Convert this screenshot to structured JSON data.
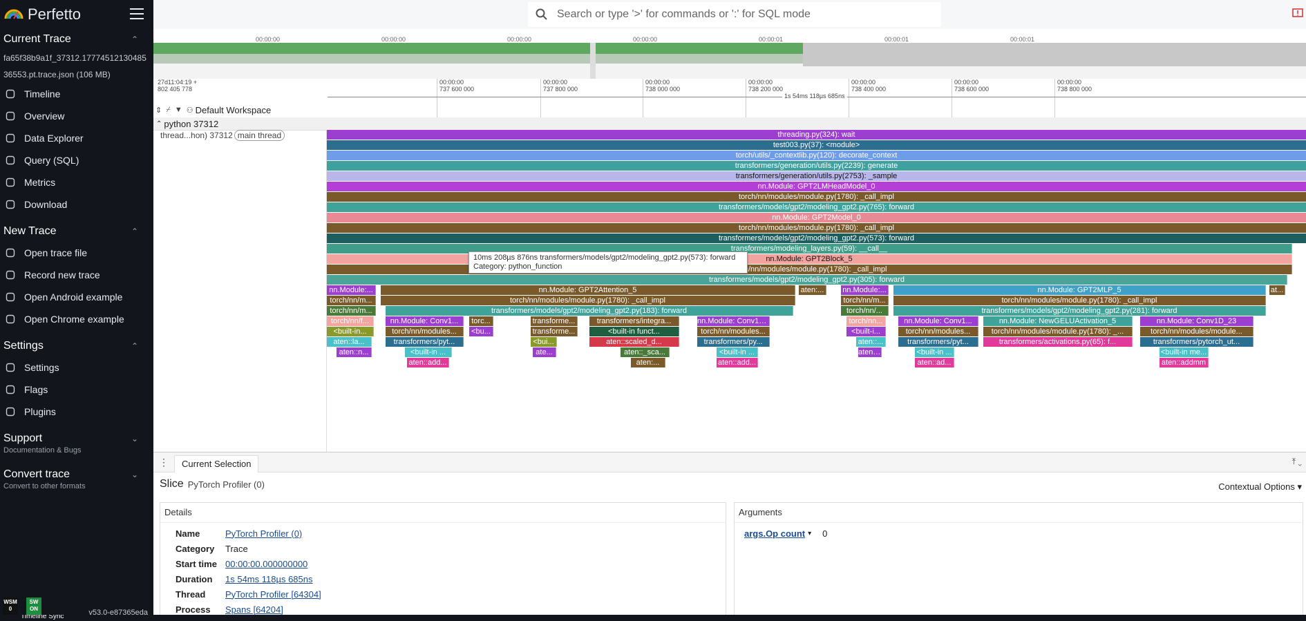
{
  "app": {
    "name": "Perfetto",
    "version": "v53.0-e87365eda",
    "badges": [
      {
        "top": "WSM",
        "bottom": "0",
        "color": "#111111"
      },
      {
        "top": "SW",
        "bottom": "ON",
        "color": "#1e8e3e"
      }
    ]
  },
  "sidebar": {
    "sections": [
      {
        "title": "Current Trace",
        "trace_name": "fa65f38b9a1f_37312.1777451213048536553.pt.trace.json (106 MB)",
        "items": [
          {
            "label": "Timeline",
            "icon": "timeline-icon"
          },
          {
            "label": "Overview",
            "icon": "info-icon"
          },
          {
            "label": "Data Explorer",
            "icon": "explore-icon"
          },
          {
            "label": "Query (SQL)",
            "icon": "database-icon"
          },
          {
            "label": "Metrics",
            "icon": "speed-icon"
          },
          {
            "label": "Download",
            "icon": "download-icon"
          }
        ]
      },
      {
        "title": "New Trace",
        "items": [
          {
            "label": "Open trace file",
            "icon": "folder-icon"
          },
          {
            "label": "Record new trace",
            "icon": "record-icon"
          },
          {
            "label": "Open Android example",
            "icon": "android-icon"
          },
          {
            "label": "Open Chrome example",
            "icon": "globe-icon"
          }
        ]
      },
      {
        "title": "Settings",
        "items": [
          {
            "label": "Settings",
            "icon": "gear-icon"
          },
          {
            "label": "Flags",
            "icon": "flag-icon"
          },
          {
            "label": "Plugins",
            "icon": "plugin-icon"
          }
        ]
      },
      {
        "title": "Support",
        "subtitle": "Documentation & Bugs"
      },
      {
        "title": "Convert trace",
        "subtitle": "Convert to other formats"
      }
    ]
  },
  "search": {
    "placeholder": "Search or type '>' for commands or ':' for SQL mode"
  },
  "overview": {
    "ticks": [
      "00:00:00",
      "00:00:00",
      "00:00:00",
      "00:00:00",
      "00:00:01",
      "00:00:01",
      "00:00:01"
    ]
  },
  "axis": {
    "origin": [
      "27d11:04:19 +",
      "802 405 778"
    ],
    "ticks": [
      {
        "line1": "00:00:00",
        "line2": "737 600 000"
      },
      {
        "line1": "00:00:00",
        "line2": "737 800 000"
      },
      {
        "line1": "00:00:00",
        "line2": "738 000 000"
      },
      {
        "line1": "00:00:00",
        "line2": "738 200 000"
      },
      {
        "line1": "00:00:00",
        "line2": "738 400 000"
      },
      {
        "line1": "00:00:00",
        "line2": "738 600 000"
      },
      {
        "line1": "00:00:00",
        "line2": "738 800 000"
      }
    ],
    "span_label": "1s 54ms 118µs 685ns",
    "workspace": "Default Workspace"
  },
  "tracks": {
    "process": "python 37312",
    "thread": "thread...hon) 37312",
    "thread_tag": "main thread",
    "slices": [
      {
        "d": 0,
        "s": 0,
        "e": 1,
        "c": "#9c3fd1",
        "t": "threading.py(324): wait"
      },
      {
        "d": 1,
        "s": 0,
        "e": 1,
        "c": "#2c6e8f",
        "t": "test003.py(37): <module>"
      },
      {
        "d": 2,
        "s": 0,
        "e": 1,
        "c": "#6f9ce8",
        "t": "torch/utils/_contextlib.py(120): decorate_context"
      },
      {
        "d": 3,
        "s": 0,
        "e": 1,
        "c": "#3fa0a0",
        "t": "transformers/generation/utils.py(2239): generate"
      },
      {
        "d": 4,
        "s": 0,
        "e": 1,
        "c": "#b9b6ea",
        "t": "transformers/generation/utils.py(2753): _sample",
        "dark": true
      },
      {
        "d": 5,
        "s": 0,
        "e": 1,
        "c": "#b53ed6",
        "t": "nn.Module: GPT2LMHeadModel_0"
      },
      {
        "d": 6,
        "s": 0,
        "e": 1,
        "c": "#7a5a2a",
        "t": "torch/nn/modules/module.py(1780): _call_impl"
      },
      {
        "d": 7,
        "s": 0,
        "e": 1,
        "c": "#3fa39a",
        "t": "transformers/models/gpt2/modeling_gpt2.py(765): forward"
      },
      {
        "d": 8,
        "s": 0,
        "e": 1,
        "c": "#e88a95",
        "t": "nn.Module: GPT2Model_0"
      },
      {
        "d": 9,
        "s": 0,
        "e": 1,
        "c": "#7a5a2a",
        "t": "torch/nn/modules/module.py(1780): _call_impl"
      },
      {
        "d": 10,
        "s": 0,
        "e": 1,
        "c": "#1f5e5e",
        "t": "transformers/models/gpt2/modeling_gpt2.py(573): forward"
      },
      {
        "d": 11,
        "s": 0,
        "e": 0.985,
        "c": "#3f9e8a",
        "t": "transformers/modeling_layers.py(59): __call__"
      },
      {
        "d": 12,
        "s": 0,
        "e": 0.985,
        "c": "#f2a5a0",
        "t": "nn.Module: GPT2Block_5",
        "dark": true
      },
      {
        "d": 13,
        "s": 0,
        "e": 0.985,
        "c": "#7a5a2a",
        "t": "torch/nn/modules/module.py(1780): _call_impl"
      },
      {
        "d": 14,
        "s": 0,
        "e": 0.98,
        "c": "#4aa598",
        "t": "transformers/models/gpt2/modeling_gpt2.py(305): forward"
      },
      {
        "d": 15,
        "s": 0,
        "e": 0.05,
        "c": "#9c3fd1",
        "t": "nn.Module:..."
      },
      {
        "d": 15,
        "s": 0.055,
        "e": 0.478,
        "c": "#7a5a2a",
        "t": "nn.Module: GPT2Attention_5"
      },
      {
        "d": 15,
        "s": 0.482,
        "e": 0.51,
        "c": "#7a5a2a",
        "t": "aten:..."
      },
      {
        "d": 15,
        "s": 0.525,
        "e": 0.574,
        "c": "#9c3fd1",
        "t": "nn.Module:..."
      },
      {
        "d": 15,
        "s": 0.578,
        "e": 0.958,
        "c": "#3fa0c8",
        "t": "nn.Module: GPT2MLP_5"
      },
      {
        "d": 15,
        "s": 0.962,
        "e": 0.978,
        "c": "#7a5a2a",
        "t": "at..."
      },
      {
        "d": 16,
        "s": 0,
        "e": 0.05,
        "c": "#7a5a2a",
        "t": "torch/nn/m..."
      },
      {
        "d": 16,
        "s": 0.055,
        "e": 0.478,
        "c": "#7a5a2a",
        "t": "torch/nn/modules/module.py(1780): _call_impl"
      },
      {
        "d": 16,
        "s": 0.525,
        "e": 0.574,
        "c": "#7a5a2a",
        "t": "torch/nn/m..."
      },
      {
        "d": 16,
        "s": 0.578,
        "e": 0.958,
        "c": "#7a5a2a",
        "t": "torch/nn/modules/module.py(1780): _call_impl"
      },
      {
        "d": 17,
        "s": 0,
        "e": 0.05,
        "c": "#4a7a3a",
        "t": "torch/nn/m..."
      },
      {
        "d": 17,
        "s": 0.06,
        "e": 0.476,
        "c": "#3fa39a",
        "t": "transformers/models/gpt2/modeling_gpt2.py(183): forward"
      },
      {
        "d": 17,
        "s": 0.525,
        "e": 0.574,
        "c": "#4a7a3a",
        "t": "torch/nn/..."
      },
      {
        "d": 17,
        "s": 0.578,
        "e": 0.958,
        "c": "#3fa39a",
        "t": "transformers/models/gpt2/modeling_gpt2.py(281): forward"
      },
      {
        "d": 18,
        "s": 0,
        "e": 0.048,
        "c": "#f2a5a0",
        "t": "torch/nn/f..."
      },
      {
        "d": 18,
        "s": 0.06,
        "e": 0.14,
        "c": "#9c3fd1",
        "t": "nn.Module: Conv1..."
      },
      {
        "d": 18,
        "s": 0.145,
        "e": 0.17,
        "c": "#7a5a2a",
        "t": "torc..."
      },
      {
        "d": 18,
        "s": 0.208,
        "e": 0.256,
        "c": "#7a5a2a",
        "t": "transforme..."
      },
      {
        "d": 18,
        "s": 0.268,
        "e": 0.36,
        "c": "#7a5a2a",
        "t": "transformers/integra..."
      },
      {
        "d": 18,
        "s": 0.378,
        "e": 0.452,
        "c": "#9c3fd1",
        "t": "nn.Module: Conv1D..."
      },
      {
        "d": 18,
        "s": 0.53,
        "e": 0.57,
        "c": "#f2a5a0",
        "t": "torch/nn..."
      },
      {
        "d": 18,
        "s": 0.583,
        "e": 0.665,
        "c": "#9c3fd1",
        "t": "nn.Module: Conv1..."
      },
      {
        "d": 18,
        "s": 0.67,
        "e": 0.822,
        "c": "#3fa39a",
        "t": "nn.Module: NewGELUActivation_5"
      },
      {
        "d": 18,
        "s": 0.83,
        "e": 0.946,
        "c": "#9c3fd1",
        "t": "nn.Module: Conv1D_23"
      },
      {
        "d": 19,
        "s": 0,
        "e": 0.048,
        "c": "#8a9a2a",
        "t": "<built-in..."
      },
      {
        "d": 19,
        "s": 0.06,
        "e": 0.14,
        "c": "#7a5a2a",
        "t": "torch/nn/modules..."
      },
      {
        "d": 19,
        "s": 0.145,
        "e": 0.17,
        "c": "#9c3fd1",
        "t": "<bu..."
      },
      {
        "d": 19,
        "s": 0.208,
        "e": 0.256,
        "c": "#7a5a2a",
        "t": "transforme..."
      },
      {
        "d": 19,
        "s": 0.268,
        "e": 0.36,
        "c": "#1f5e3e",
        "t": "<built-in funct..."
      },
      {
        "d": 19,
        "s": 0.378,
        "e": 0.452,
        "c": "#7a5a2a",
        "t": "torch/nn/modules..."
      },
      {
        "d": 19,
        "s": 0.53,
        "e": 0.57,
        "c": "#9c3fd1",
        "t": "<built-i..."
      },
      {
        "d": 19,
        "s": 0.583,
        "e": 0.665,
        "c": "#7a5a2a",
        "t": "torch/nn/modules..."
      },
      {
        "d": 19,
        "s": 0.67,
        "e": 0.822,
        "c": "#7a5a2a",
        "t": "torch/nn/modules/module.py(1780): _..."
      },
      {
        "d": 19,
        "s": 0.83,
        "e": 0.946,
        "c": "#7a5a2a",
        "t": "torch/nn/modules/module..."
      },
      {
        "d": 20,
        "s": 0,
        "e": 0.046,
        "c": "#4ac0c8",
        "t": "aten::la..."
      },
      {
        "d": 20,
        "s": 0.06,
        "e": 0.14,
        "c": "#2c6e8f",
        "t": "transformers/pyt..."
      },
      {
        "d": 20,
        "s": 0.208,
        "e": 0.235,
        "c": "#8a9a2a",
        "t": "<bui..."
      },
      {
        "d": 20,
        "s": 0.268,
        "e": 0.36,
        "c": "#d63a4a",
        "t": "aten::scaled_d..."
      },
      {
        "d": 20,
        "s": 0.378,
        "e": 0.452,
        "c": "#2c6e8f",
        "t": "transformers/py..."
      },
      {
        "d": 20,
        "s": 0.54,
        "e": 0.57,
        "c": "#4ac0c8",
        "t": "aten::..."
      },
      {
        "d": 20,
        "s": 0.583,
        "e": 0.665,
        "c": "#2c6e8f",
        "t": "transformers/pyt..."
      },
      {
        "d": 20,
        "s": 0.67,
        "e": 0.822,
        "c": "#e23a9a",
        "t": "transformers/activations.py(65): f..."
      },
      {
        "d": 20,
        "s": 0.83,
        "e": 0.946,
        "c": "#2c6e8f",
        "t": "transformers/pytorch_ut..."
      },
      {
        "d": 21,
        "s": 0.01,
        "e": 0.046,
        "c": "#9c3fd1",
        "t": "aten::n..."
      },
      {
        "d": 21,
        "s": 0.08,
        "e": 0.128,
        "c": "#4ac0c8",
        "t": "<built-in ..."
      },
      {
        "d": 21,
        "s": 0.21,
        "e": 0.234,
        "c": "#9c3fd1",
        "t": "ate..."
      },
      {
        "d": 21,
        "s": 0.3,
        "e": 0.35,
        "c": "#4a7a3a",
        "t": "aten::_sca..."
      },
      {
        "d": 21,
        "s": 0.398,
        "e": 0.44,
        "c": "#4ac0c8",
        "t": "<built-in ..."
      },
      {
        "d": 21,
        "s": 0.542,
        "e": 0.566,
        "c": "#9c3fd1",
        "t": "aten:..."
      },
      {
        "d": 21,
        "s": 0.6,
        "e": 0.64,
        "c": "#4ac0c8",
        "t": "<built-in ..."
      },
      {
        "d": 21,
        "s": 0.85,
        "e": 0.9,
        "c": "#4ac0c8",
        "t": "<built-in me..."
      },
      {
        "d": 22,
        "s": 0.082,
        "e": 0.125,
        "c": "#e23a9a",
        "t": "aten::add..."
      },
      {
        "d": 22,
        "s": 0.31,
        "e": 0.345,
        "c": "#7a5a2a",
        "t": "aten:..."
      },
      {
        "d": 22,
        "s": 0.398,
        "e": 0.44,
        "c": "#e23a9a",
        "t": "aten::add..."
      },
      {
        "d": 22,
        "s": 0.6,
        "e": 0.64,
        "c": "#e23a9a",
        "t": "aten::ad..."
      },
      {
        "d": 22,
        "s": 0.85,
        "e": 0.9,
        "c": "#e23a9a",
        "t": "aten::addmm"
      }
    ]
  },
  "tooltip": {
    "line1": "10ms 208µs 876ns transformers/models/gpt2/modeling_gpt2.py(573): forward",
    "line2": "Category: python_function"
  },
  "panel": {
    "tab": "Current Selection",
    "title": "Slice",
    "subtitle": "PyTorch Profiler (0)",
    "context": "Contextual Options",
    "details_header": "Details",
    "details": [
      {
        "k": "Name",
        "v": "PyTorch Profiler (0)",
        "link": true
      },
      {
        "k": "Category",
        "v": "Trace",
        "link": false
      },
      {
        "k": "Start time",
        "v": "00:00:00.000000000",
        "link": true
      },
      {
        "k": "Duration",
        "v": "1s 54ms 118µs 685ns",
        "link": true
      },
      {
        "k": "Thread",
        "v": "PyTorch Profiler [64304]",
        "link": true
      },
      {
        "k": "Process",
        "v": "Spans [64204]",
        "link": true
      }
    ],
    "args_header": "Arguments",
    "args": [
      {
        "k": "args.Op count",
        "v": "0"
      }
    ]
  },
  "statusbar": {
    "text": "Timeline Sync"
  }
}
